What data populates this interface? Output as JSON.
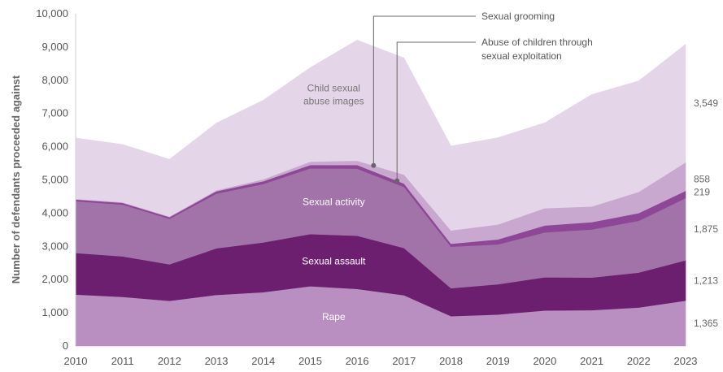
{
  "chart_data": {
    "type": "area",
    "stacked": true,
    "ylabel": "Number of defendants proceeded against",
    "xlabel": "",
    "title": "",
    "x": [
      "2010",
      "2011",
      "2012",
      "2013",
      "2014",
      "2015",
      "2016",
      "2017",
      "2018",
      "2019",
      "2020",
      "2021",
      "2022",
      "2023"
    ],
    "ylim": [
      0,
      10000
    ],
    "yticks": [
      "0",
      "1,000",
      "2,000",
      "3,000",
      "4,000",
      "5,000",
      "6,000",
      "7,000",
      "8,000",
      "9,000",
      "10,000"
    ],
    "grid": false,
    "series": [
      {
        "name": "Rape",
        "color": "#b98ec1",
        "label_color": "light",
        "values": [
          1550,
          1480,
          1360,
          1540,
          1620,
          1800,
          1720,
          1530,
          900,
          950,
          1070,
          1080,
          1160,
          1365
        ]
      },
      {
        "name": "Sexual assault",
        "color": "#6b1f6e",
        "label_color": "light",
        "values": [
          1250,
          1220,
          1100,
          1400,
          1500,
          1570,
          1600,
          1420,
          840,
          910,
          1000,
          980,
          1050,
          1213
        ]
      },
      {
        "name": "Sexual activity",
        "color": "#a173a8",
        "label_color": "light",
        "values": [
          1560,
          1560,
          1370,
          1650,
          1760,
          1980,
          2020,
          1840,
          1250,
          1200,
          1350,
          1450,
          1560,
          1875
        ]
      },
      {
        "name": "Abuse of children through sexual exploitation",
        "color": "#8e4796",
        "label_color": "none",
        "values": [
          50,
          50,
          50,
          70,
          80,
          100,
          110,
          100,
          90,
          150,
          210,
          220,
          230,
          219
        ]
      },
      {
        "name": "Sexual grooming",
        "color": "#c8a8cf",
        "label_color": "none",
        "values": [
          20,
          20,
          20,
          30,
          60,
          100,
          130,
          270,
          400,
          450,
          520,
          470,
          640,
          858
        ]
      },
      {
        "name": "Child sexual abuse images",
        "color": "#e4d6e8",
        "label_color": "dark",
        "values": [
          1830,
          1740,
          1720,
          2020,
          2380,
          2830,
          3630,
          3510,
          2540,
          2610,
          2570,
          3370,
          3340,
          3549
        ]
      }
    ],
    "area_labels": [
      {
        "series": "Child sexual abuse images",
        "lines": [
          "Child sexual",
          "abuse images"
        ]
      },
      {
        "series": "Sexual activity",
        "lines": [
          "Sexual activity"
        ]
      },
      {
        "series": "Sexual assault",
        "lines": [
          "Sexual assault"
        ]
      },
      {
        "series": "Rape",
        "lines": [
          "Rape"
        ]
      }
    ],
    "end_labels": [
      {
        "series": "Child sexual abuse images",
        "text": "3,549"
      },
      {
        "series": "Sexual grooming",
        "text": "858"
      },
      {
        "series": "Abuse of children through sexual exploitation",
        "text": "219"
      },
      {
        "series": "Sexual activity",
        "text": "1,875"
      },
      {
        "series": "Sexual assault",
        "text": "1,213"
      },
      {
        "series": "Rape",
        "text": "1,365"
      }
    ],
    "annotations": [
      {
        "series": "Sexual grooming",
        "year": 2016.35,
        "lines": [
          "Sexual grooming"
        ]
      },
      {
        "series": "Abuse of children through sexual exploitation",
        "year": 2016.85,
        "lines": [
          "Abuse of children through",
          "sexual exploitation"
        ]
      }
    ]
  }
}
